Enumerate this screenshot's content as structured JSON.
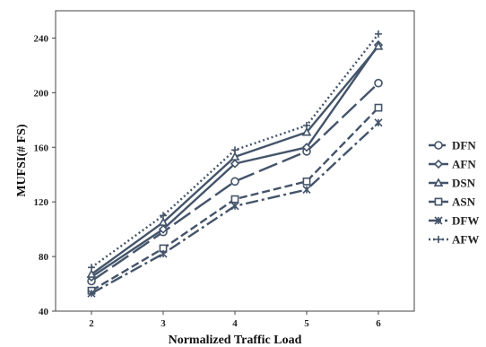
{
  "chart_data": {
    "type": "line",
    "xlabel": "Normalized Traffic Load",
    "ylabel": "MUFSI(# FS)",
    "x": [
      2,
      3,
      4,
      5,
      6
    ],
    "xlim": [
      1.5,
      6.5
    ],
    "ylim": [
      40,
      260
    ],
    "yticks": [
      40,
      80,
      120,
      160,
      200,
      240
    ],
    "grid": false,
    "legend_position": "right",
    "series": [
      {
        "name": "DFN",
        "values": [
          62,
          98,
          135,
          157,
          207
        ],
        "dash": "22,6",
        "marker": "circle"
      },
      {
        "name": "AFN",
        "values": [
          65,
          100,
          148,
          160,
          235
        ],
        "dash": "",
        "marker": "diamond"
      },
      {
        "name": "DSN",
        "values": [
          67,
          105,
          153,
          171,
          234
        ],
        "dash": "",
        "marker": "triangle"
      },
      {
        "name": "ASN",
        "values": [
          55,
          86,
          122,
          135,
          189
        ],
        "dash": "9,4",
        "marker": "square"
      },
      {
        "name": "DFW",
        "values": [
          53,
          82,
          117,
          129,
          178
        ],
        "dash": "14,4,3,4",
        "marker": "star"
      },
      {
        "name": "AFW",
        "values": [
          72,
          110,
          158,
          176,
          243
        ],
        "dash": "2,3",
        "marker": "plus"
      }
    ],
    "colors": {
      "line": "#44546a"
    }
  }
}
